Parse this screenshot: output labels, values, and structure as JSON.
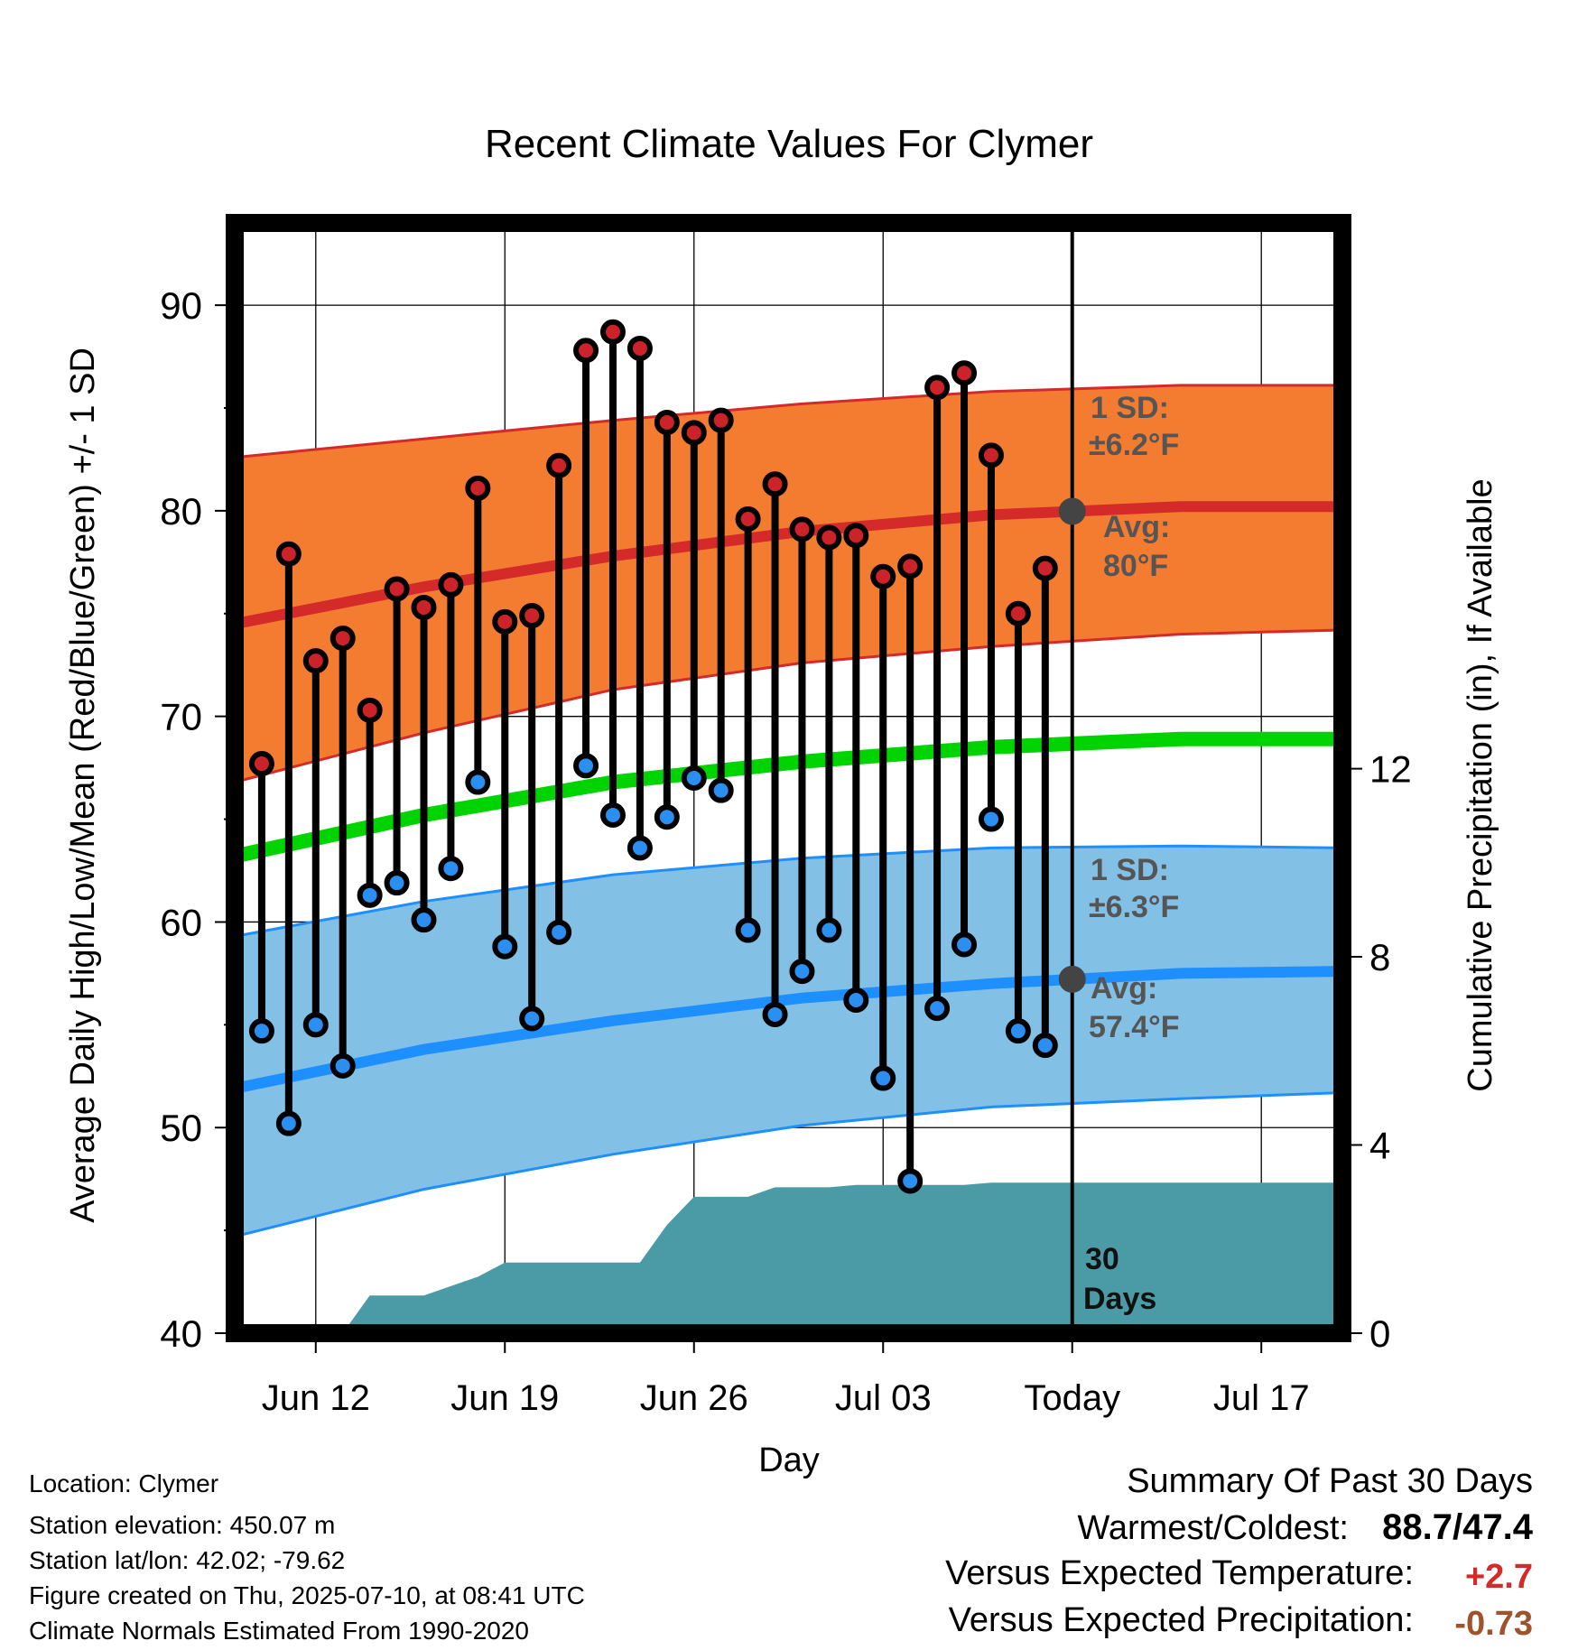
{
  "title": "Recent Climate Values For Clymer",
  "y_left_label": "Average Daily High/Low/Mean (Red/Blue/Green) +/- 1 SD",
  "y_right_label": "Cumulative Precipitation (in), If Available",
  "x_label": "Day",
  "annotations": {
    "high_sd_line1": "1 SD:",
    "high_sd_line2": "±6.2°F",
    "high_avg_line1": "Avg:",
    "high_avg_line2": "80°F",
    "low_sd_line1": "1 SD:",
    "low_sd_line2": "±6.3°F",
    "low_avg_line1": "Avg:",
    "low_avg_line2": "57.4°F",
    "days_line1": "30",
    "days_line2": "Days"
  },
  "footer": {
    "location": "Location: Clymer",
    "elevation": "Station elevation: 450.07 m",
    "latlon": "Station lat/lon: 42.02; -79.62",
    "created": "Figure created on Thu, 2025-07-10, at 08:41 UTC",
    "normals": "Climate Normals Estimated From 1990-2020"
  },
  "summary": {
    "heading": "Summary Of Past 30 Days",
    "warm_cold_label": "Warmest/Coldest:",
    "warmest": "88.7",
    "sep": "/",
    "coldest": "47.4",
    "temp_label": "Versus Expected Temperature:",
    "temp_value": "+2.7",
    "precip_label": "Versus Expected Precipitation:",
    "precip_value": "-0.73"
  },
  "colors": {
    "high_band": "#f47c30",
    "high_avg": "#d42a2a",
    "low_band": "#82c0e6",
    "low_avg": "#1e8fff",
    "mean_avg": "#00d400",
    "precip": "#4a9ba6",
    "high_dot": "#cc2229",
    "low_dot": "#2a8ff0",
    "temp_anom": "#d42a2a",
    "precip_anom": "#a0522d"
  },
  "chart_data": {
    "type": "line",
    "x_range": [
      "2025-06-09",
      "2025-07-20"
    ],
    "y_left_range": [
      40,
      94
    ],
    "y_right_range": [
      0,
      23.6
    ],
    "y_left_ticks": [
      40,
      50,
      60,
      70,
      80,
      90
    ],
    "y_right_ticks": [
      0,
      4,
      8,
      12
    ],
    "x_ticks": [
      {
        "date": "2025-06-12",
        "label": "Jun 12"
      },
      {
        "date": "2025-06-19",
        "label": "Jun 19"
      },
      {
        "date": "2025-06-26",
        "label": "Jun 26"
      },
      {
        "date": "2025-07-03",
        "label": "Jul 03"
      },
      {
        "date": "2025-07-10",
        "label": "Today"
      },
      {
        "date": "2025-07-17",
        "label": "Jul 17"
      }
    ],
    "today": "2025-07-10",
    "normals": {
      "dates": [
        "2025-06-09",
        "2025-06-16",
        "2025-06-23",
        "2025-06-30",
        "2025-07-07",
        "2025-07-14",
        "2025-07-20"
      ],
      "high_avg": [
        74.5,
        76.3,
        77.8,
        79.0,
        79.8,
        80.2,
        80.2
      ],
      "high_upper": [
        82.6,
        83.5,
        84.4,
        85.2,
        85.8,
        86.1,
        86.1
      ],
      "high_lower": [
        66.8,
        69.2,
        71.3,
        72.6,
        73.4,
        74.0,
        74.2
      ],
      "mean_avg": [
        63.2,
        65.2,
        66.8,
        67.8,
        68.5,
        68.9,
        68.9
      ],
      "low_avg": [
        51.9,
        53.8,
        55.2,
        56.3,
        57.0,
        57.5,
        57.6
      ],
      "low_upper": [
        59.3,
        61.0,
        62.3,
        63.1,
        63.6,
        63.7,
        63.6
      ],
      "low_lower": [
        44.7,
        47.0,
        48.7,
        50.1,
        51.0,
        51.4,
        51.7
      ]
    },
    "observations": {
      "dates": [
        "2025-06-10",
        "2025-06-11",
        "2025-06-12",
        "2025-06-13",
        "2025-06-14",
        "2025-06-15",
        "2025-06-16",
        "2025-06-17",
        "2025-06-18",
        "2025-06-19",
        "2025-06-20",
        "2025-06-21",
        "2025-06-22",
        "2025-06-23",
        "2025-06-24",
        "2025-06-25",
        "2025-06-26",
        "2025-06-27",
        "2025-06-28",
        "2025-06-29",
        "2025-06-30",
        "2025-07-01",
        "2025-07-02",
        "2025-07-03",
        "2025-07-04",
        "2025-07-05",
        "2025-07-06",
        "2025-07-07",
        "2025-07-08",
        "2025-07-09"
      ],
      "highs": [
        67.7,
        77.9,
        72.7,
        73.8,
        70.3,
        76.2,
        75.3,
        76.4,
        81.1,
        74.6,
        74.9,
        82.2,
        87.8,
        88.7,
        87.9,
        84.3,
        83.8,
        84.4,
        79.6,
        81.3,
        79.1,
        78.7,
        78.8,
        76.8,
        77.3,
        86.0,
        86.7,
        82.7,
        75.0,
        77.2
      ],
      "lows": [
        54.7,
        50.2,
        55.0,
        53.0,
        61.3,
        61.9,
        60.1,
        62.6,
        66.8,
        58.8,
        55.3,
        59.5,
        67.6,
        65.2,
        63.6,
        65.1,
        67.0,
        66.4,
        59.6,
        55.5,
        57.6,
        59.6,
        56.2,
        52.4,
        47.4,
        55.8,
        58.9,
        65.0,
        54.7,
        54.0
      ]
    },
    "precip_cumulative": {
      "dates": [
        "2025-06-09",
        "2025-06-13",
        "2025-06-14",
        "2025-06-15",
        "2025-06-16",
        "2025-06-17",
        "2025-06-18",
        "2025-06-19",
        "2025-06-20",
        "2025-06-24",
        "2025-06-25",
        "2025-06-26",
        "2025-06-27",
        "2025-06-28",
        "2025-06-29",
        "2025-06-30",
        "2025-07-01",
        "2025-07-02",
        "2025-07-03",
        "2025-07-04",
        "2025-07-05",
        "2025-07-06",
        "2025-07-07",
        "2025-07-08",
        "2025-07-09",
        "2025-07-10",
        "2025-07-20"
      ],
      "values": [
        0,
        0,
        0.8,
        0.8,
        0.8,
        1.0,
        1.2,
        1.5,
        1.5,
        1.5,
        2.3,
        2.9,
        2.9,
        2.9,
        3.1,
        3.1,
        3.1,
        3.15,
        3.15,
        3.15,
        3.15,
        3.15,
        3.2,
        3.2,
        3.2,
        3.2,
        3.2
      ]
    }
  }
}
